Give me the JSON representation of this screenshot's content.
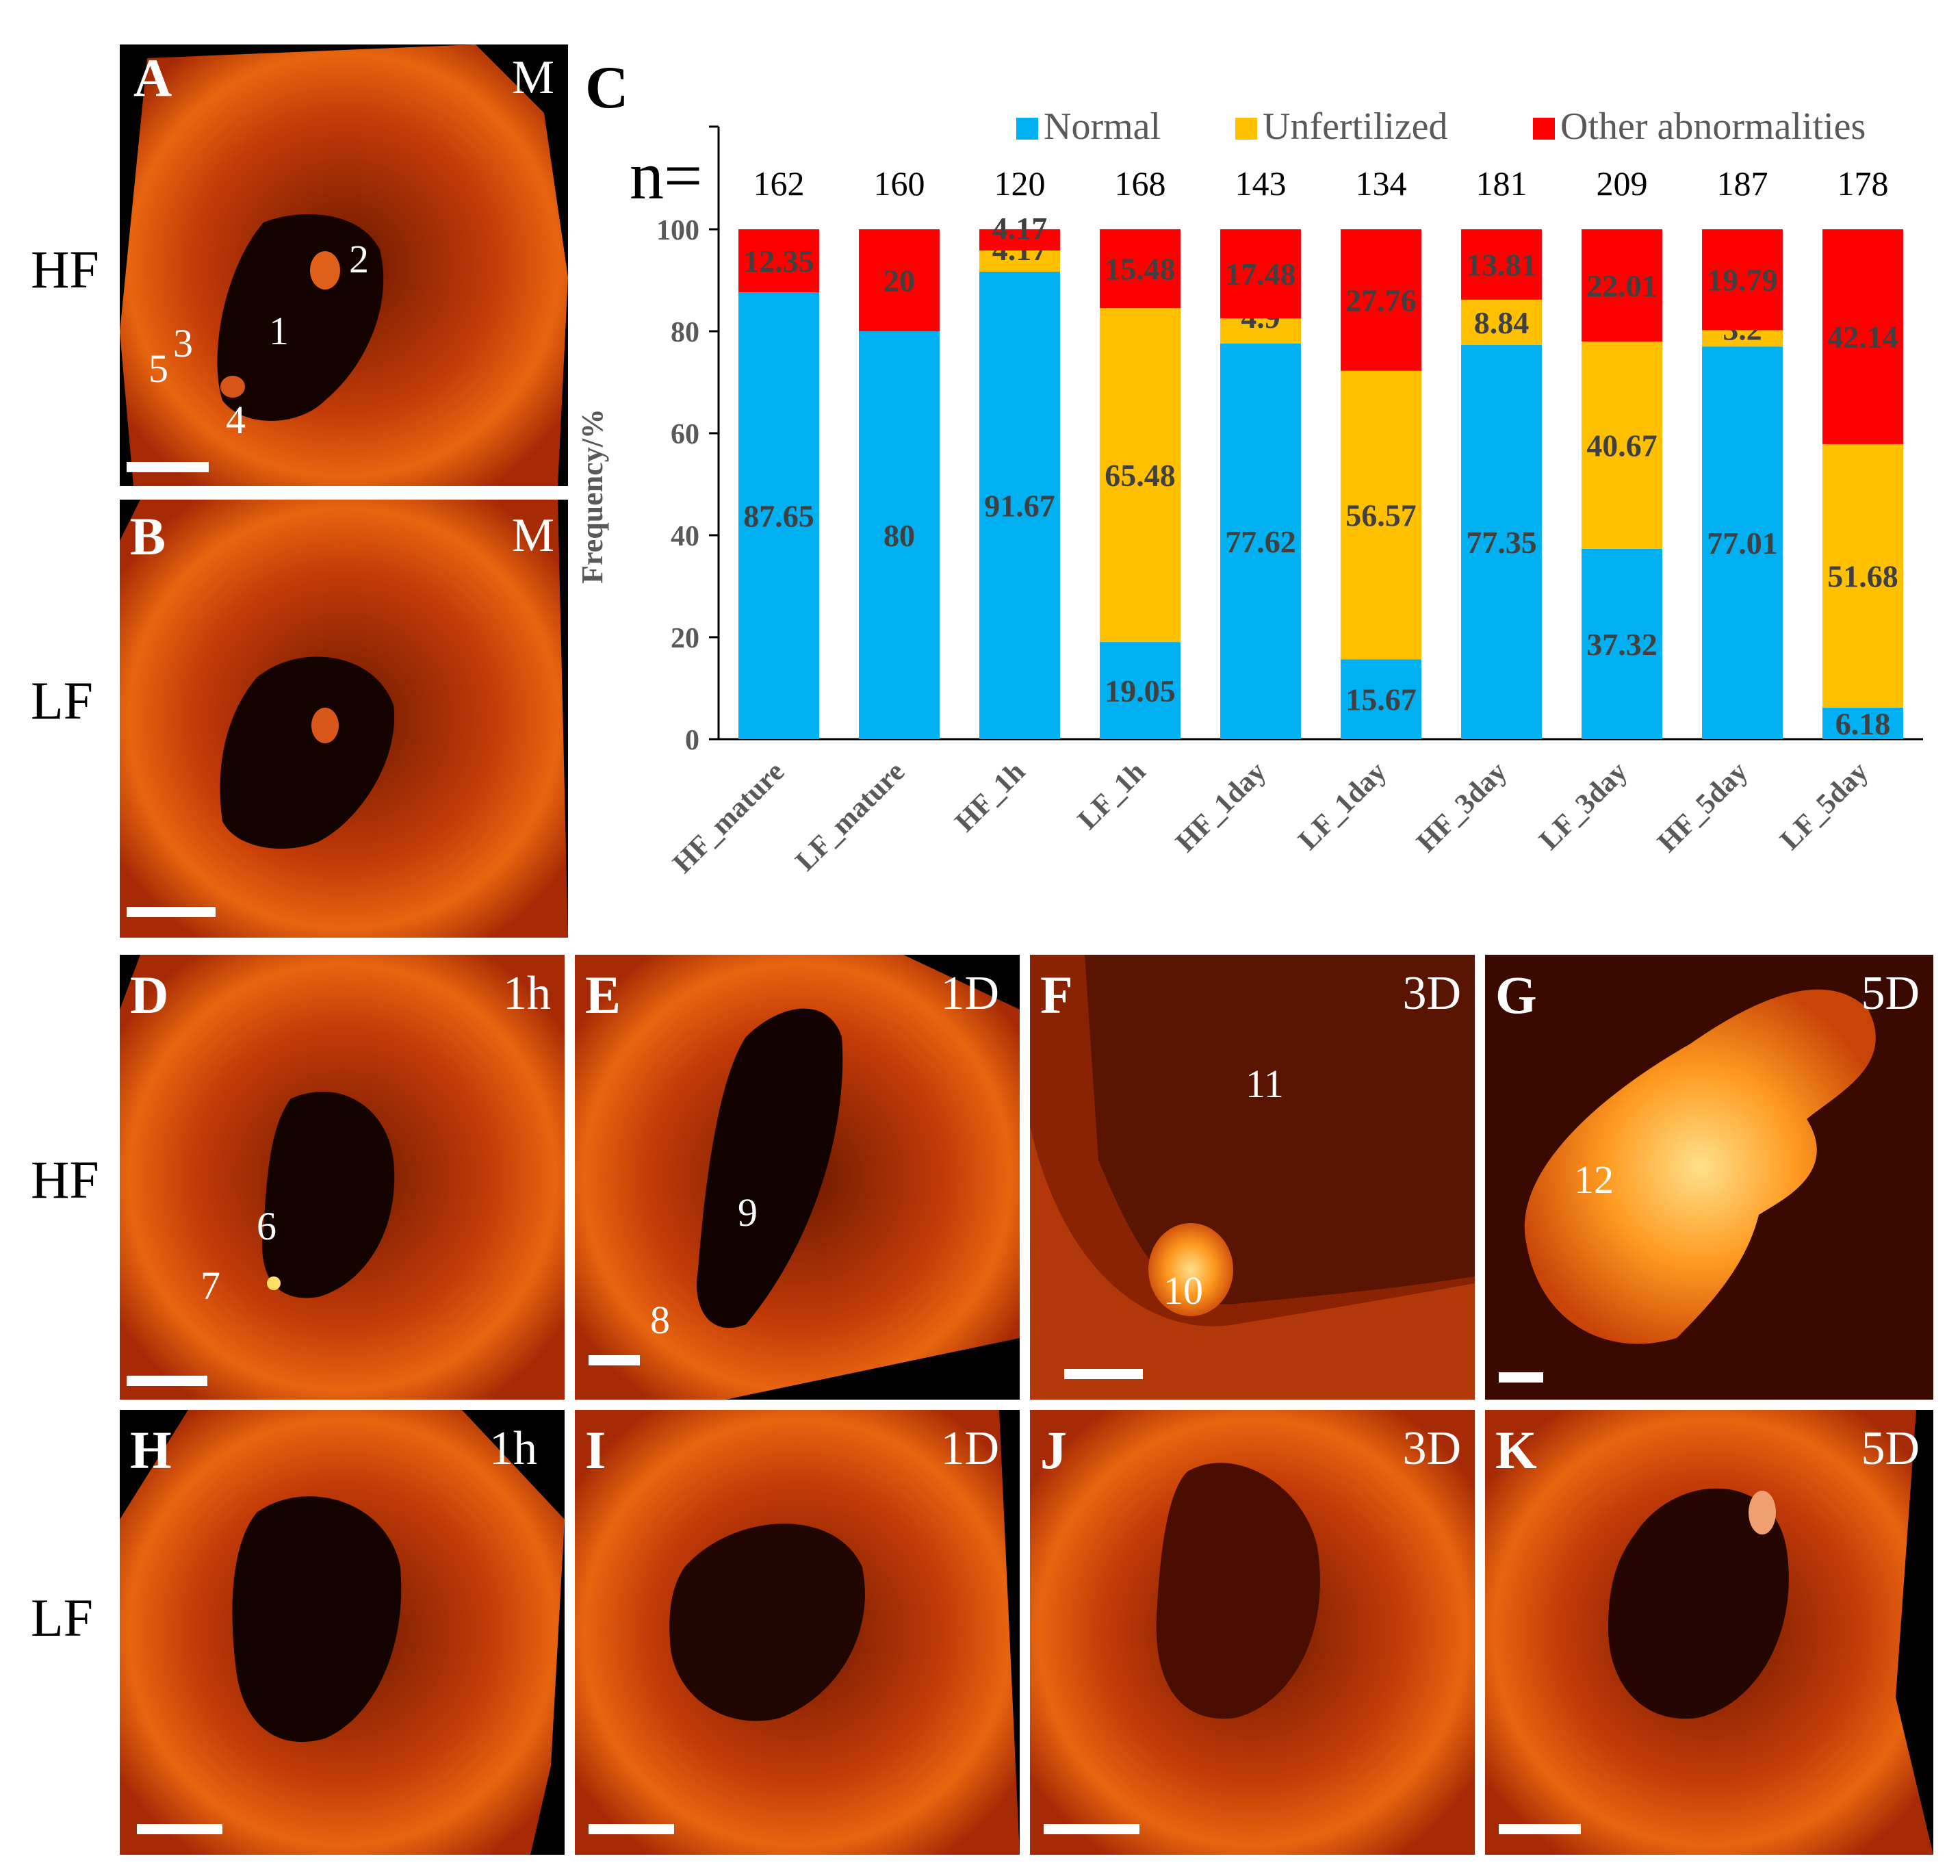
{
  "figure": {
    "panels": {
      "A": {
        "letter": "A",
        "tag": "M"
      },
      "B": {
        "letter": "B",
        "tag": "M"
      },
      "C": {
        "letter": "C"
      },
      "D": {
        "letter": "D",
        "tag": "1h"
      },
      "E": {
        "letter": "E",
        "tag": "1D"
      },
      "F": {
        "letter": "F",
        "tag": "3D"
      },
      "G": {
        "letter": "G",
        "tag": "5D"
      },
      "H": {
        "letter": "H",
        "tag": "1h"
      },
      "I": {
        "letter": "I",
        "tag": "1D"
      },
      "J": {
        "letter": "J",
        "tag": "3D"
      },
      "K": {
        "letter": "K",
        "tag": "5D"
      }
    },
    "row_labels": [
      "HF",
      "LF",
      "HF",
      "LF"
    ],
    "structure_numbers": {
      "A": [
        "1",
        "2",
        "3",
        "4",
        "5"
      ],
      "D": [
        "6",
        "7"
      ],
      "E": [
        "8",
        "9"
      ],
      "F": [
        "10",
        "11"
      ],
      "G": [
        "12"
      ]
    }
  },
  "chart_data": {
    "type": "bar",
    "stacked": true,
    "title": "",
    "xlabel": "",
    "ylabel": "Frequency/%",
    "ylim": [
      0,
      100
    ],
    "yticks": [
      0,
      20,
      40,
      60,
      80,
      100
    ],
    "n_label": "n=",
    "categories": [
      "HF_mature",
      "LF_mature",
      "HF_1h",
      "LF_1h",
      "HF_1day",
      "LF_1day",
      "HF_3day",
      "LF_3day",
      "HF_5day",
      "LF_5day"
    ],
    "n_values": [
      162,
      160,
      120,
      168,
      143,
      134,
      181,
      209,
      187,
      178
    ],
    "series": [
      {
        "name": "Normal",
        "color": "#00b0f0",
        "values": [
          87.65,
          80,
          91.67,
          19.05,
          77.62,
          15.67,
          77.35,
          37.32,
          77.01,
          6.18
        ],
        "labels": [
          "87.65",
          "80",
          "91.67",
          "19.05",
          "77.62",
          "15.67",
          "77.35",
          "37.32",
          "77.01",
          "6.18"
        ]
      },
      {
        "name": "Unfertilized",
        "color": "#ffc000",
        "values": [
          0,
          0,
          4.17,
          65.48,
          4.9,
          56.57,
          8.84,
          40.67,
          3.2,
          51.68
        ],
        "labels": [
          "",
          "",
          "4.17",
          "65.48",
          "4.9",
          "56.57",
          "8.84",
          "40.67",
          "3.2",
          "51.68"
        ]
      },
      {
        "name": "Other abnormalities",
        "color": "#ff0000",
        "values": [
          12.35,
          20,
          4.17,
          15.48,
          17.48,
          27.76,
          13.81,
          22.01,
          19.79,
          42.14
        ],
        "labels": [
          "12.35",
          "20",
          "4.17",
          "15.48",
          "17.48",
          "27.76",
          "13.81",
          "22.01",
          "19.79",
          "42.14"
        ]
      }
    ],
    "legend_position": "top"
  }
}
